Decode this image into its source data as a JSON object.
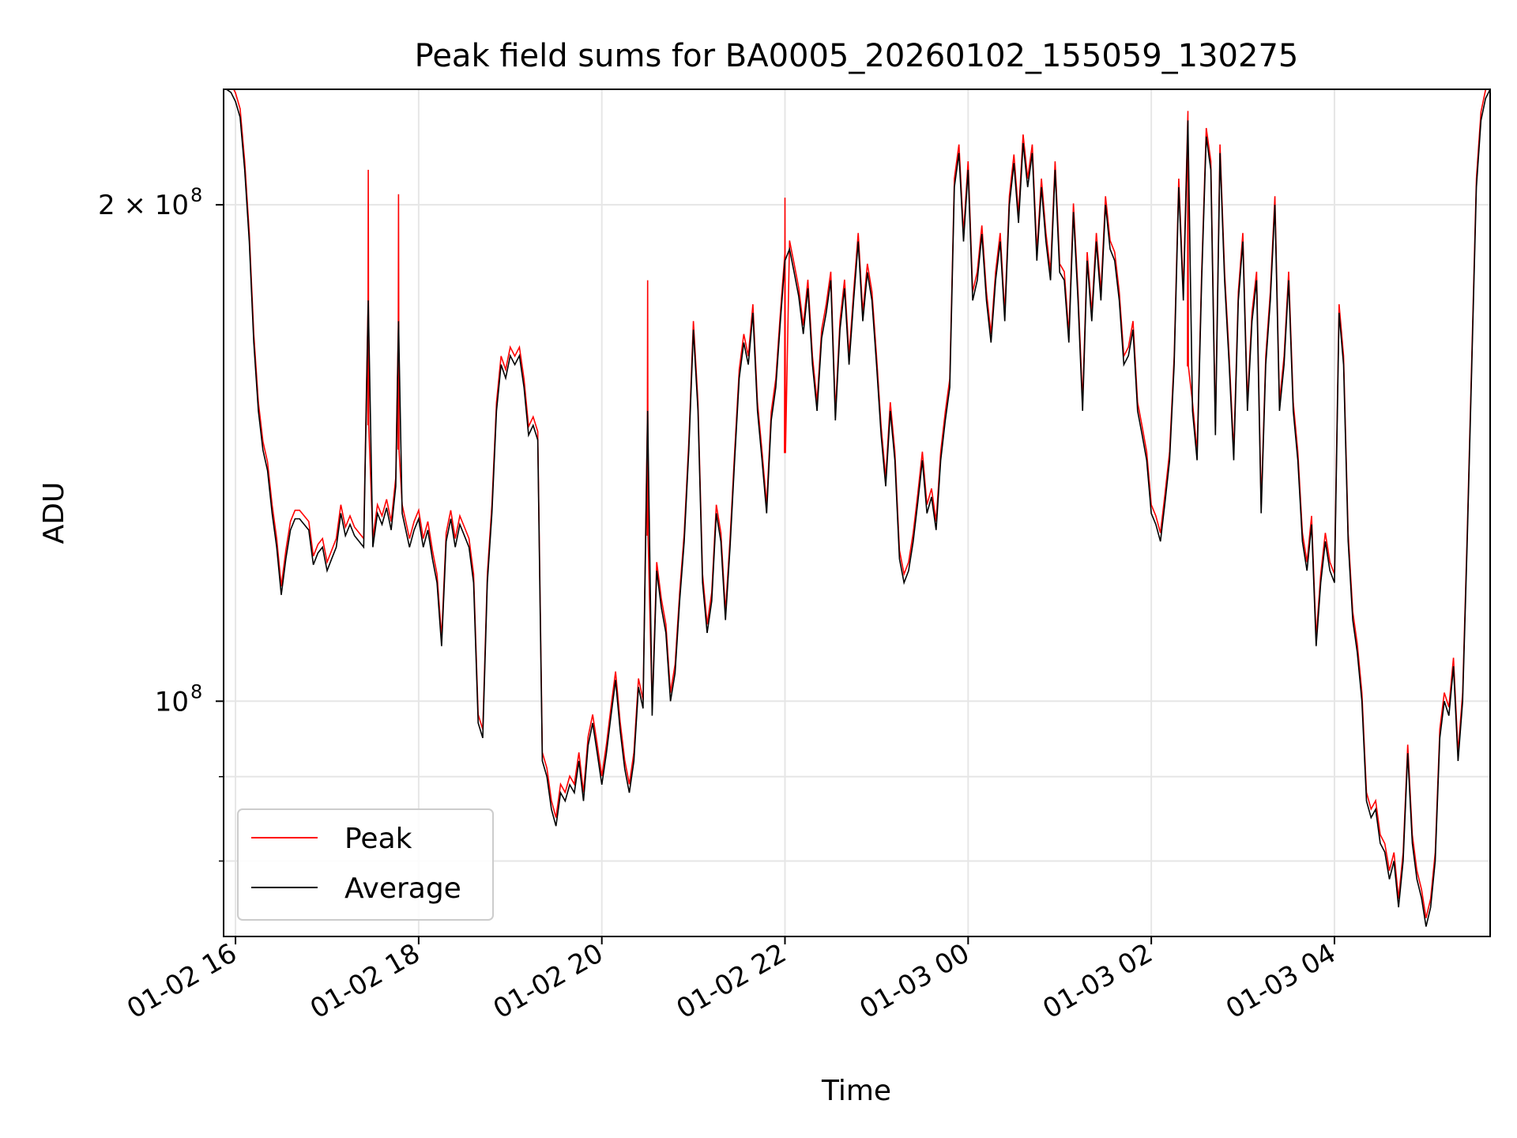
{
  "chart_data": {
    "type": "line",
    "title": "Peak field sums for BA0005_20260102_155059_130275",
    "xlabel": "Time",
    "ylabel": "ADU",
    "x_ticks": [
      "01-02 16",
      "01-02 18",
      "01-02 20",
      "01-02 22",
      "01-03 00",
      "01-03 02",
      "01-03 04"
    ],
    "y_tick_labels": {
      "major_1e8": "10",
      "major_1e8_exp": "8",
      "major_2e8_prefix": "2 × 10",
      "major_2e8_exp": "8"
    },
    "y_scale": "log",
    "ylim": [
      72000000,
      235000000
    ],
    "xlim_hours": [
      15.87,
      29.7
    ],
    "grid": true,
    "legend_position": "lower left",
    "colors": {
      "peak": "#ff0000",
      "average": "#000000",
      "grid": "#e6e6e6"
    },
    "series": [
      {
        "name": "Peak"
      },
      {
        "name": "Average"
      }
    ],
    "x_unit": "hours since 01-02 00:00",
    "average_points": [
      [
        15.9,
        235000000
      ],
      [
        15.95,
        234000000
      ],
      [
        16.0,
        231000000
      ],
      [
        16.05,
        226000000
      ],
      [
        16.1,
        210000000
      ],
      [
        16.15,
        190000000
      ],
      [
        16.2,
        165000000
      ],
      [
        16.25,
        150000000
      ],
      [
        16.3,
        142000000
      ],
      [
        16.35,
        138000000
      ],
      [
        16.4,
        130000000
      ],
      [
        16.45,
        124000000
      ],
      [
        16.5,
        116000000
      ],
      [
        16.55,
        122000000
      ],
      [
        16.6,
        127000000
      ],
      [
        16.65,
        129000000
      ],
      [
        16.7,
        129000000
      ],
      [
        16.75,
        128000000
      ],
      [
        16.8,
        127000000
      ],
      [
        16.85,
        121000000
      ],
      [
        16.9,
        123000000
      ],
      [
        16.95,
        124000000
      ],
      [
        17.0,
        120000000
      ],
      [
        17.05,
        122000000
      ],
      [
        17.1,
        124000000
      ],
      [
        17.15,
        130000000
      ],
      [
        17.2,
        126000000
      ],
      [
        17.25,
        128000000
      ],
      [
        17.3,
        126000000
      ],
      [
        17.4,
        124000000
      ],
      [
        17.45,
        175000000
      ],
      [
        17.5,
        124000000
      ],
      [
        17.55,
        130000000
      ],
      [
        17.6,
        128000000
      ],
      [
        17.65,
        131000000
      ],
      [
        17.7,
        127000000
      ],
      [
        17.75,
        135000000
      ],
      [
        17.78,
        170000000
      ],
      [
        17.82,
        130000000
      ],
      [
        17.9,
        124000000
      ],
      [
        17.95,
        127000000
      ],
      [
        18.0,
        129000000
      ],
      [
        18.05,
        124000000
      ],
      [
        18.1,
        127000000
      ],
      [
        18.15,
        122000000
      ],
      [
        18.2,
        118000000
      ],
      [
        18.25,
        108000000
      ],
      [
        18.3,
        125000000
      ],
      [
        18.35,
        129000000
      ],
      [
        18.4,
        124000000
      ],
      [
        18.45,
        128000000
      ],
      [
        18.5,
        126000000
      ],
      [
        18.55,
        124000000
      ],
      [
        18.6,
        118000000
      ],
      [
        18.65,
        97000000
      ],
      [
        18.7,
        95000000
      ],
      [
        18.75,
        118000000
      ],
      [
        18.8,
        130000000
      ],
      [
        18.85,
        150000000
      ],
      [
        18.9,
        160000000
      ],
      [
        18.95,
        157000000
      ],
      [
        19.0,
        162000000
      ],
      [
        19.05,
        160000000
      ],
      [
        19.1,
        162000000
      ],
      [
        19.15,
        155000000
      ],
      [
        19.2,
        145000000
      ],
      [
        19.25,
        147000000
      ],
      [
        19.3,
        144000000
      ],
      [
        19.35,
        92000000
      ],
      [
        19.4,
        90000000
      ],
      [
        19.45,
        86000000
      ],
      [
        19.5,
        84000000
      ],
      [
        19.55,
        88000000
      ],
      [
        19.6,
        87000000
      ],
      [
        19.65,
        89000000
      ],
      [
        19.7,
        88000000
      ],
      [
        19.75,
        92000000
      ],
      [
        19.8,
        87000000
      ],
      [
        19.85,
        94000000
      ],
      [
        19.9,
        97000000
      ],
      [
        19.95,
        93000000
      ],
      [
        20.0,
        89000000
      ],
      [
        20.05,
        93000000
      ],
      [
        20.1,
        98000000
      ],
      [
        20.15,
        103000000
      ],
      [
        20.2,
        96000000
      ],
      [
        20.25,
        91000000
      ],
      [
        20.3,
        88000000
      ],
      [
        20.35,
        92000000
      ],
      [
        20.4,
        102000000
      ],
      [
        20.45,
        99000000
      ],
      [
        20.5,
        150000000
      ],
      [
        20.55,
        98000000
      ],
      [
        20.6,
        120000000
      ],
      [
        20.65,
        114000000
      ],
      [
        20.7,
        110000000
      ],
      [
        20.75,
        100000000
      ],
      [
        20.8,
        104000000
      ],
      [
        20.85,
        115000000
      ],
      [
        20.9,
        125000000
      ],
      [
        20.95,
        142000000
      ],
      [
        21.0,
        168000000
      ],
      [
        21.05,
        150000000
      ],
      [
        21.1,
        118000000
      ],
      [
        21.15,
        110000000
      ],
      [
        21.2,
        115000000
      ],
      [
        21.25,
        130000000
      ],
      [
        21.3,
        125000000
      ],
      [
        21.35,
        112000000
      ],
      [
        21.4,
        124000000
      ],
      [
        21.45,
        140000000
      ],
      [
        21.5,
        157000000
      ],
      [
        21.55,
        165000000
      ],
      [
        21.6,
        160000000
      ],
      [
        21.65,
        172000000
      ],
      [
        21.7,
        150000000
      ],
      [
        21.75,
        140000000
      ],
      [
        21.8,
        130000000
      ],
      [
        21.85,
        148000000
      ],
      [
        21.9,
        155000000
      ],
      [
        21.95,
        170000000
      ],
      [
        22.0,
        185000000
      ],
      [
        22.05,
        188000000
      ],
      [
        22.1,
        182000000
      ],
      [
        22.15,
        176000000
      ],
      [
        22.2,
        167000000
      ],
      [
        22.25,
        178000000
      ],
      [
        22.3,
        160000000
      ],
      [
        22.35,
        150000000
      ],
      [
        22.4,
        166000000
      ],
      [
        22.45,
        172000000
      ],
      [
        22.5,
        180000000
      ],
      [
        22.55,
        148000000
      ],
      [
        22.6,
        168000000
      ],
      [
        22.65,
        178000000
      ],
      [
        22.7,
        160000000
      ],
      [
        22.75,
        175000000
      ],
      [
        22.8,
        190000000
      ],
      [
        22.85,
        170000000
      ],
      [
        22.9,
        182000000
      ],
      [
        22.95,
        175000000
      ],
      [
        23.0,
        160000000
      ],
      [
        23.05,
        145000000
      ],
      [
        23.1,
        135000000
      ],
      [
        23.15,
        150000000
      ],
      [
        23.2,
        140000000
      ],
      [
        23.25,
        122000000
      ],
      [
        23.3,
        118000000
      ],
      [
        23.35,
        120000000
      ],
      [
        23.4,
        125000000
      ],
      [
        23.45,
        132000000
      ],
      [
        23.5,
        140000000
      ],
      [
        23.55,
        130000000
      ],
      [
        23.6,
        133000000
      ],
      [
        23.65,
        127000000
      ],
      [
        23.7,
        140000000
      ],
      [
        23.75,
        148000000
      ],
      [
        23.8,
        155000000
      ],
      [
        23.85,
        205000000
      ],
      [
        23.9,
        215000000
      ],
      [
        23.95,
        190000000
      ],
      [
        24.0,
        210000000
      ],
      [
        24.05,
        175000000
      ],
      [
        24.1,
        180000000
      ],
      [
        24.15,
        192000000
      ],
      [
        24.2,
        175000000
      ],
      [
        24.25,
        165000000
      ],
      [
        24.3,
        180000000
      ],
      [
        24.35,
        190000000
      ],
      [
        24.4,
        170000000
      ],
      [
        24.45,
        200000000
      ],
      [
        24.5,
        212000000
      ],
      [
        24.55,
        195000000
      ],
      [
        24.6,
        218000000
      ],
      [
        24.65,
        205000000
      ],
      [
        24.7,
        215000000
      ],
      [
        24.75,
        185000000
      ],
      [
        24.8,
        205000000
      ],
      [
        24.85,
        190000000
      ],
      [
        24.9,
        180000000
      ],
      [
        24.95,
        210000000
      ],
      [
        25.0,
        182000000
      ],
      [
        25.05,
        180000000
      ],
      [
        25.1,
        165000000
      ],
      [
        25.15,
        198000000
      ],
      [
        25.2,
        175000000
      ],
      [
        25.25,
        150000000
      ],
      [
        25.3,
        185000000
      ],
      [
        25.35,
        170000000
      ],
      [
        25.4,
        190000000
      ],
      [
        25.45,
        175000000
      ],
      [
        25.5,
        200000000
      ],
      [
        25.55,
        188000000
      ],
      [
        25.6,
        185000000
      ],
      [
        25.65,
        175000000
      ],
      [
        25.7,
        160000000
      ],
      [
        25.75,
        162000000
      ],
      [
        25.8,
        168000000
      ],
      [
        25.85,
        150000000
      ],
      [
        25.9,
        145000000
      ],
      [
        25.95,
        140000000
      ],
      [
        26.0,
        130000000
      ],
      [
        26.05,
        128000000
      ],
      [
        26.1,
        125000000
      ],
      [
        26.15,
        132000000
      ],
      [
        26.2,
        140000000
      ],
      [
        26.25,
        160000000
      ],
      [
        26.3,
        205000000
      ],
      [
        26.35,
        175000000
      ],
      [
        26.4,
        225000000
      ],
      [
        26.45,
        150000000
      ],
      [
        26.5,
        140000000
      ],
      [
        26.55,
        180000000
      ],
      [
        26.6,
        220000000
      ],
      [
        26.65,
        210000000
      ],
      [
        26.7,
        145000000
      ],
      [
        26.75,
        215000000
      ],
      [
        26.8,
        180000000
      ],
      [
        26.85,
        160000000
      ],
      [
        26.9,
        140000000
      ],
      [
        26.95,
        175000000
      ],
      [
        27.0,
        190000000
      ],
      [
        27.05,
        150000000
      ],
      [
        27.1,
        170000000
      ],
      [
        27.15,
        180000000
      ],
      [
        27.2,
        130000000
      ],
      [
        27.25,
        160000000
      ],
      [
        27.3,
        175000000
      ],
      [
        27.35,
        200000000
      ],
      [
        27.4,
        150000000
      ],
      [
        27.45,
        160000000
      ],
      [
        27.5,
        180000000
      ],
      [
        27.55,
        150000000
      ],
      [
        27.6,
        140000000
      ],
      [
        27.65,
        125000000
      ],
      [
        27.7,
        120000000
      ],
      [
        27.75,
        128000000
      ],
      [
        27.8,
        108000000
      ],
      [
        27.85,
        118000000
      ],
      [
        27.9,
        125000000
      ],
      [
        27.95,
        120000000
      ],
      [
        28.0,
        118000000
      ],
      [
        28.05,
        172000000
      ],
      [
        28.1,
        160000000
      ],
      [
        28.15,
        125000000
      ],
      [
        28.2,
        112000000
      ],
      [
        28.25,
        107000000
      ],
      [
        28.3,
        100000000
      ],
      [
        28.35,
        87000000
      ],
      [
        28.4,
        85000000
      ],
      [
        28.45,
        86000000
      ],
      [
        28.5,
        82000000
      ],
      [
        28.55,
        81000000
      ],
      [
        28.6,
        78000000
      ],
      [
        28.65,
        80000000
      ],
      [
        28.7,
        75000000
      ],
      [
        28.75,
        80000000
      ],
      [
        28.8,
        93000000
      ],
      [
        28.85,
        82000000
      ],
      [
        28.9,
        78000000
      ],
      [
        28.95,
        76000000
      ],
      [
        29.0,
        73000000
      ],
      [
        29.05,
        75000000
      ],
      [
        29.1,
        80000000
      ],
      [
        29.15,
        95000000
      ],
      [
        29.2,
        100000000
      ],
      [
        29.25,
        98000000
      ],
      [
        29.3,
        105000000
      ],
      [
        29.35,
        92000000
      ],
      [
        29.4,
        100000000
      ],
      [
        29.45,
        125000000
      ],
      [
        29.5,
        160000000
      ],
      [
        29.55,
        205000000
      ],
      [
        29.6,
        225000000
      ],
      [
        29.65,
        232000000
      ],
      [
        29.7,
        235000000
      ]
    ],
    "peak_spikes": [
      [
        17.45,
        210000000
      ],
      [
        17.78,
        203000000
      ],
      [
        20.5,
        180000000
      ],
      [
        22.0,
        202000000
      ],
      [
        26.4,
        228000000
      ]
    ]
  }
}
